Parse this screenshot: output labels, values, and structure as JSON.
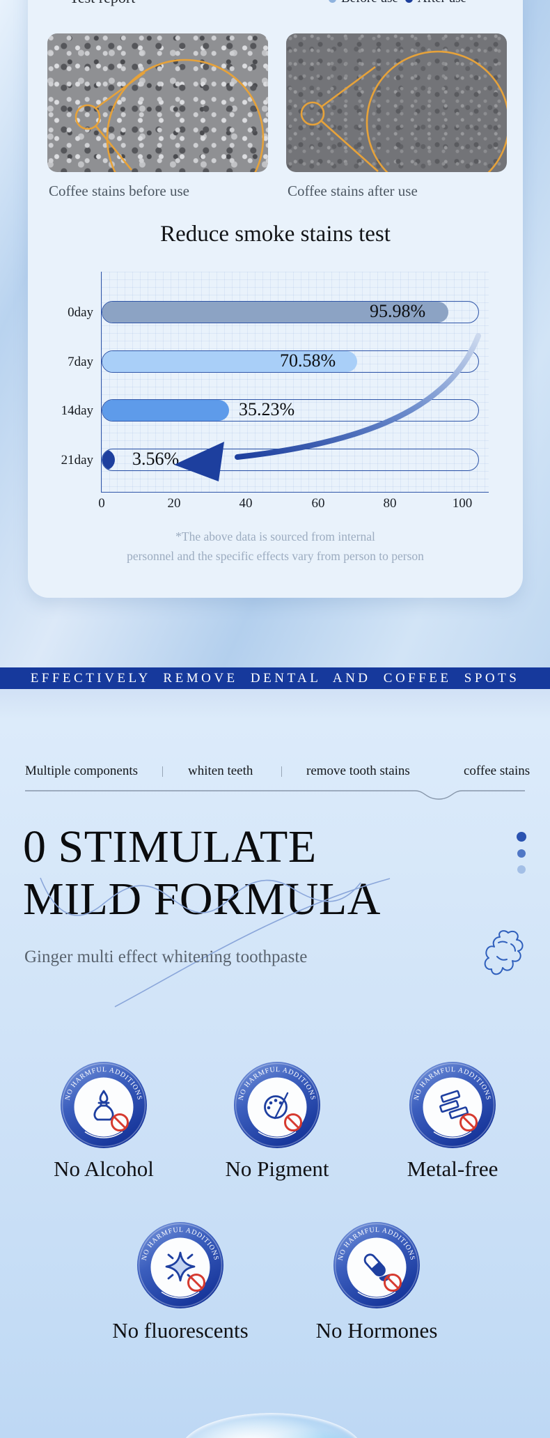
{
  "report_card": {
    "title": "Test report",
    "legend": [
      {
        "label": "Before use",
        "color": "#8FB3DE"
      },
      {
        "label": "After use",
        "color": "#1D3F9C"
      }
    ],
    "micrographs": [
      {
        "caption": "Coffee stains before use"
      },
      {
        "caption": "Coffee stains after use"
      }
    ],
    "disclaimer_line1": "*The above data is sourced from internal",
    "disclaimer_line2": "personnel and the specific effects vary from person to person"
  },
  "chart_data": {
    "type": "bar",
    "orientation": "horizontal",
    "title": "Reduce smoke stains test",
    "categories": [
      "0day",
      "7day",
      "14day",
      "21day"
    ],
    "values": [
      95.98,
      70.58,
      35.23,
      3.56
    ],
    "labels": [
      "95.98%",
      "70.58%",
      "35.23%",
      "3.56%"
    ],
    "bar_colors": [
      "#8CA3C4",
      "#A9CFF8",
      "#5E9BEA",
      "#1D3F9E"
    ],
    "xlim": [
      0,
      100
    ],
    "x_ticks": [
      "0",
      "20",
      "40",
      "60",
      "80",
      "100"
    ],
    "grid": true,
    "legend_position": "top-right",
    "annotation": "downward-trend-arrow"
  },
  "banner": {
    "text": "EFFECTIVELY REMOVE DENTAL AND COFFEE SPOTS",
    "bg_color": "#16399C"
  },
  "feature_tabs": {
    "items": [
      "Multiple components",
      "whiten teeth",
      "remove tooth stains",
      "coffee stains"
    ]
  },
  "hero": {
    "heading_line1": "0 STIMULATE",
    "heading_line2": "MILD FORMULA",
    "subtitle": "Ginger multi effect whitening toothpaste"
  },
  "badges": {
    "stamp_text": "NO HARMFUL ADDITIONS",
    "row1": [
      {
        "label": "No Alcohol",
        "icon": "alcohol-lamp-icon"
      },
      {
        "label": "No Pigment",
        "icon": "paint-palette-icon"
      },
      {
        "label": "Metal-free",
        "icon": "metal-ingot-icon"
      }
    ],
    "row2": [
      {
        "label": "No fluorescents",
        "icon": "sparkle-icon"
      },
      {
        "label": "No Hormones",
        "icon": "capsule-icon"
      }
    ]
  }
}
